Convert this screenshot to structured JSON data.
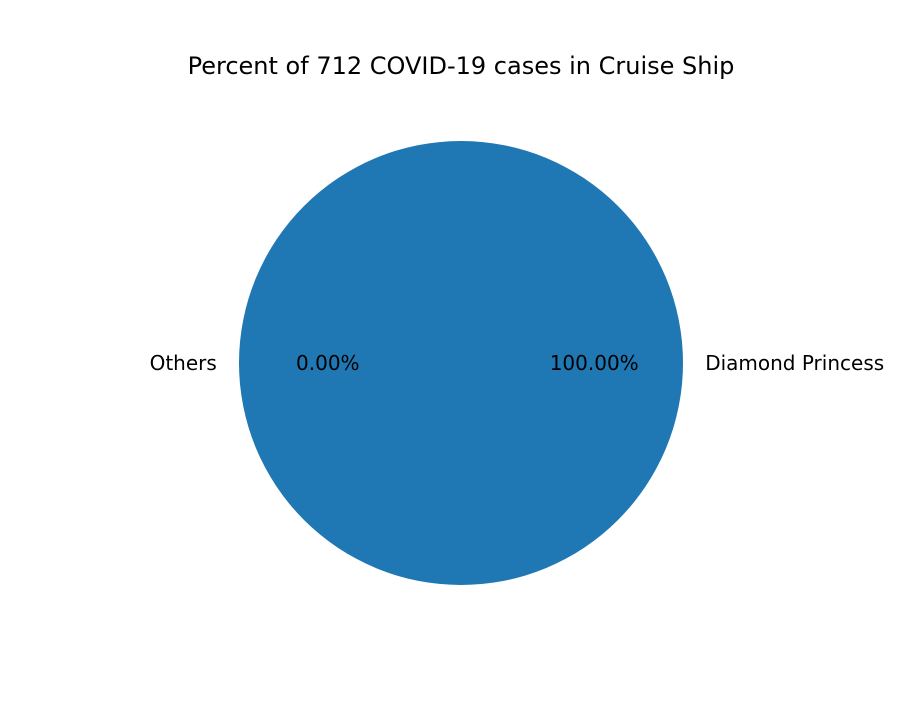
{
  "chart_data": {
    "type": "pie",
    "title": "Percent of 712 COVID-19 cases in Cruise Ship",
    "categories": [
      "Diamond Princess",
      "Others"
    ],
    "values": [
      712,
      0
    ],
    "percent_labels": [
      "100.00%",
      "0.00%"
    ],
    "colors": [
      "#1f77b4",
      "#ff7f0e"
    ],
    "legend": "none"
  }
}
